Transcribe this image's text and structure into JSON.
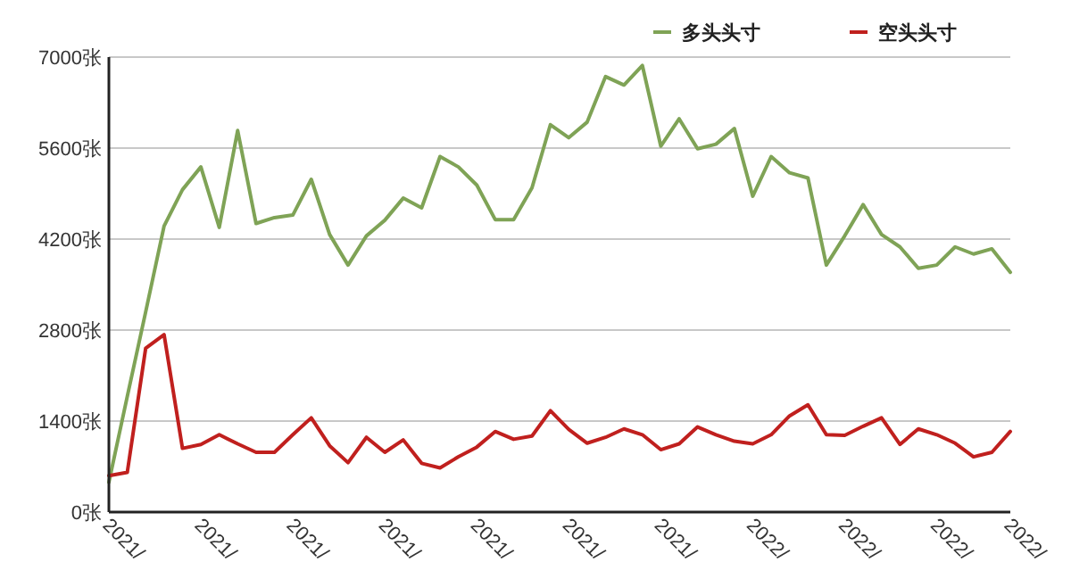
{
  "chart_data": {
    "type": "line",
    "categories": [
      "2021/",
      null,
      null,
      null,
      null,
      "2021/",
      null,
      null,
      null,
      null,
      "2021/",
      null,
      null,
      null,
      null,
      "2021/",
      null,
      null,
      null,
      null,
      "2021/",
      null,
      null,
      null,
      null,
      "2021/",
      null,
      null,
      null,
      null,
      "2021/",
      null,
      null,
      null,
      null,
      "2022/",
      null,
      null,
      null,
      null,
      "2022/",
      null,
      null,
      null,
      null,
      "2022/",
      null,
      null,
      null,
      "2022/"
    ],
    "series": [
      {
        "name": "多头头寸",
        "color": "#7fa356",
        "values": [
          460,
          1780,
          3080,
          4400,
          4960,
          5310,
          4380,
          5870,
          4440,
          4530,
          4570,
          5120,
          4270,
          3800,
          4250,
          4490,
          4830,
          4680,
          5470,
          5310,
          5030,
          4500,
          4500,
          4990,
          5960,
          5760,
          6000,
          6700,
          6570,
          6870,
          5630,
          6050,
          5590,
          5660,
          5900,
          4860,
          5470,
          5220,
          5140,
          3800,
          4250,
          4730,
          4270,
          4080,
          3750,
          3800,
          4080,
          3970,
          4050,
          3690
        ]
      },
      {
        "name": "空头头寸",
        "color": "#c0201e",
        "values": [
          560,
          610,
          2520,
          2730,
          980,
          1040,
          1190,
          1050,
          920,
          920,
          1190,
          1450,
          1020,
          760,
          1150,
          920,
          1110,
          750,
          680,
          850,
          1000,
          1240,
          1120,
          1170,
          1560,
          1270,
          1060,
          1150,
          1280,
          1190,
          960,
          1050,
          1310,
          1190,
          1090,
          1050,
          1190,
          1480,
          1650,
          1190,
          1180,
          1320,
          1450,
          1040,
          1280,
          1190,
          1060,
          850,
          920,
          1240
        ]
      }
    ],
    "ylim": [
      0,
      7000
    ],
    "yticks": [
      {
        "value": 0,
        "label": "0张"
      },
      {
        "value": 1400,
        "label": "1400张"
      },
      {
        "value": 2800,
        "label": "2800张"
      },
      {
        "value": 4200,
        "label": "4200张"
      },
      {
        "value": 5600,
        "label": "5600张"
      },
      {
        "value": 7000,
        "label": "7000张"
      }
    ],
    "grid": "y",
    "legend": "top right",
    "marker": "none",
    "line_style": "solid"
  }
}
